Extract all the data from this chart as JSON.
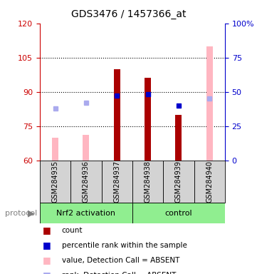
{
  "title": "GDS3476 / 1457366_at",
  "samples": [
    "GSM284935",
    "GSM284936",
    "GSM284937",
    "GSM284938",
    "GSM284939",
    "GSM284940"
  ],
  "ylim_left": [
    60,
    120
  ],
  "yticks_left": [
    60,
    75,
    90,
    105,
    120
  ],
  "yticks_right": [
    0,
    25,
    50,
    75,
    100
  ],
  "yticklabels_right": [
    "0",
    "25",
    "50",
    "75",
    "100%"
  ],
  "bar_values": [
    null,
    null,
    100,
    96,
    80,
    null
  ],
  "bar_color": "#AA0000",
  "absent_bar_values": [
    70,
    71,
    null,
    null,
    null,
    110
  ],
  "absent_bar_color": "#FFB6C1",
  "percentile_values": [
    null,
    null,
    47,
    48,
    40,
    null
  ],
  "percentile_color": "#0000CC",
  "absent_rank_values": [
    38,
    42,
    null,
    null,
    null,
    45
  ],
  "absent_rank_color": "#AAAAEE",
  "left_axis_color": "#CC0000",
  "right_axis_color": "#0000CC",
  "sample_area_color": "#D3D3D3",
  "group_green": "#90EE90",
  "legend_items": [
    {
      "label": "count",
      "color": "#AA0000"
    },
    {
      "label": "percentile rank within the sample",
      "color": "#0000CC"
    },
    {
      "label": "value, Detection Call = ABSENT",
      "color": "#FFB6C1"
    },
    {
      "label": "rank, Detection Call = ABSENT",
      "color": "#AAAAEE"
    }
  ]
}
